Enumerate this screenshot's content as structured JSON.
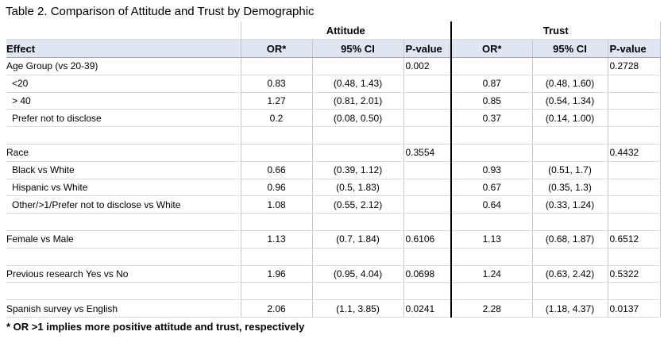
{
  "title": "Table 2. Comparison of Attitude and Trust by Demographic",
  "group_headers": {
    "attitude": "Attitude",
    "trust": "Trust"
  },
  "columns": [
    "Effect",
    "OR*",
    "95% CI",
    "P-value",
    "OR*",
    "95% CI",
    "P-value"
  ],
  "rows": [
    {
      "label": "Age Group (vs 20-39)",
      "indent": false,
      "cells": [
        "",
        "",
        "0.002",
        "",
        "",
        "0.2728"
      ]
    },
    {
      "label": "<20",
      "indent": true,
      "cells": [
        "0.83",
        "(0.48, 1.43)",
        "",
        "0.87",
        "(0.48, 1.60)",
        ""
      ]
    },
    {
      "label": "> 40",
      "indent": true,
      "cells": [
        "1.27",
        "(0.81, 2.01)",
        "",
        "0.85",
        "(0.54, 1.34)",
        ""
      ]
    },
    {
      "label": "Prefer not to disclose",
      "indent": true,
      "cells": [
        "0.2",
        "(0.08, 0.50)",
        "",
        "0.37",
        "(0.14, 1.00)",
        ""
      ]
    },
    {
      "label": "",
      "indent": false,
      "cells": [
        "",
        "",
        "",
        "",
        "",
        ""
      ]
    },
    {
      "label": "Race",
      "indent": false,
      "cells": [
        "",
        "",
        "0.3554",
        "",
        "",
        "0.4432"
      ]
    },
    {
      "label": "Black vs White",
      "indent": true,
      "cells": [
        "0.66",
        "(0.39, 1.12)",
        "",
        "0.93",
        "(0.51, 1.7)",
        ""
      ]
    },
    {
      "label": "Hispanic vs White",
      "indent": true,
      "cells": [
        "0.96",
        "(0.5, 1.83)",
        "",
        "0.67",
        "(0.35, 1.3)",
        ""
      ]
    },
    {
      "label": "Other/>1/Prefer not to disclose vs White",
      "indent": true,
      "cells": [
        "1.08",
        "(0.55, 2.12)",
        "",
        "0.64",
        "(0.33, 1.24)",
        ""
      ]
    },
    {
      "label": "",
      "indent": false,
      "cells": [
        "",
        "",
        "",
        "",
        "",
        ""
      ]
    },
    {
      "label": "Female vs Male",
      "indent": false,
      "cells": [
        "1.13",
        "(0.7, 1.84)",
        "0.6106",
        "1.13",
        "(0.68, 1.87)",
        "0.6512"
      ]
    },
    {
      "label": "",
      "indent": false,
      "cells": [
        "",
        "",
        "",
        "",
        "",
        ""
      ]
    },
    {
      "label": "Previous research Yes vs No",
      "indent": false,
      "cells": [
        "1.96",
        "(0.95, 4.04)",
        "0.0698",
        "1.24",
        "(0.63, 2.42)",
        "0.5322"
      ]
    },
    {
      "label": "",
      "indent": false,
      "cells": [
        "",
        "",
        "",
        "",
        "",
        ""
      ]
    },
    {
      "label": "Spanish survey vs English",
      "indent": false,
      "cells": [
        "2.06",
        "(1.1, 3.85)",
        "0.0241",
        "2.28",
        "(1.18, 4.37)",
        "0.0137"
      ]
    }
  ],
  "footnote": "* OR >1 implies more positive attitude and trust, respectively"
}
